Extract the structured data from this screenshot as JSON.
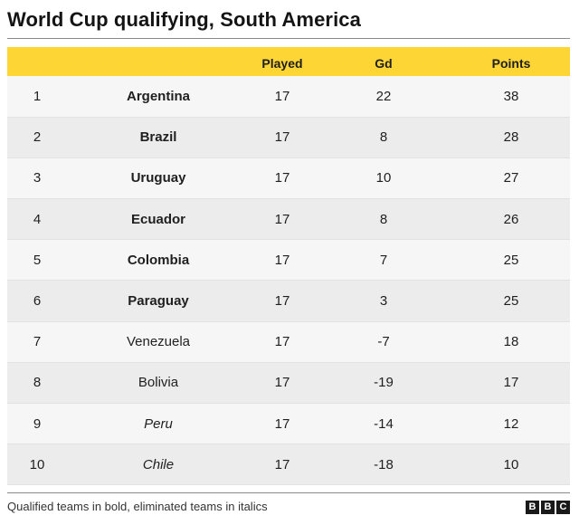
{
  "title": "World Cup qualifying, South America",
  "table": {
    "columns": [
      "",
      "",
      "Played",
      "Gd",
      "Points"
    ],
    "rows": [
      {
        "pos": "1",
        "team": "Argentina",
        "played": "17",
        "gd": "22",
        "points": "38",
        "status": "qualified"
      },
      {
        "pos": "2",
        "team": "Brazil",
        "played": "17",
        "gd": "8",
        "points": "28",
        "status": "qualified"
      },
      {
        "pos": "3",
        "team": "Uruguay",
        "played": "17",
        "gd": "10",
        "points": "27",
        "status": "qualified"
      },
      {
        "pos": "4",
        "team": "Ecuador",
        "played": "17",
        "gd": "8",
        "points": "26",
        "status": "qualified"
      },
      {
        "pos": "5",
        "team": "Colombia",
        "played": "17",
        "gd": "7",
        "points": "25",
        "status": "qualified"
      },
      {
        "pos": "6",
        "team": "Paraguay",
        "played": "17",
        "gd": "3",
        "points": "25",
        "status": "qualified"
      },
      {
        "pos": "7",
        "team": "Venezuela",
        "played": "17",
        "gd": "-7",
        "points": "18",
        "status": "in-contention"
      },
      {
        "pos": "8",
        "team": "Bolivia",
        "played": "17",
        "gd": "-19",
        "points": "17",
        "status": "in-contention"
      },
      {
        "pos": "9",
        "team": "Peru",
        "played": "17",
        "gd": "-14",
        "points": "12",
        "status": "eliminated"
      },
      {
        "pos": "10",
        "team": "Chile",
        "played": "17",
        "gd": "-18",
        "points": "10",
        "status": "eliminated"
      }
    ]
  },
  "footnote": "Qualified teams in bold, eliminated teams in italics",
  "logo": [
    "B",
    "B",
    "C"
  ],
  "colors": {
    "header_bg": "#fdd535",
    "row_bg_light": "#f6f6f6",
    "row_bg_dark": "#ececec"
  }
}
